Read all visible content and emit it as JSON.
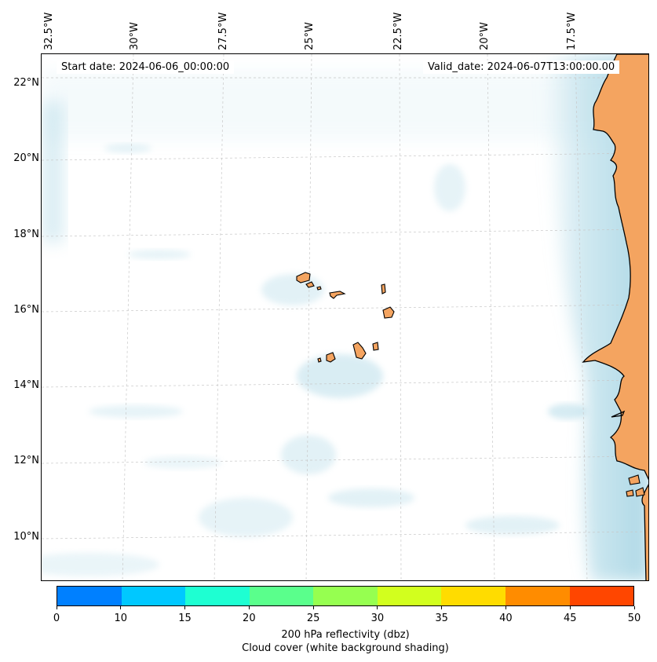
{
  "map": {
    "start_label": "Start date: 2024-06-06_00:00:00",
    "valid_label": "Valid_date: 2024-06-07T13:00:00.00",
    "lon_labels": [
      "32.5°W",
      "30°W",
      "27.5°W",
      "25°W",
      "22.5°W",
      "20°W",
      "17.5°W"
    ],
    "lat_labels": [
      "22°N",
      "20°N",
      "18°N",
      "16°N",
      "14°N",
      "12°N",
      "10°N"
    ],
    "land_color": "#f4a460",
    "cloud_color": "#add8e6",
    "gridline_color": "#c8c8c8",
    "coastline_color": "#000000"
  },
  "colorbar": {
    "ticks": [
      "0",
      "10",
      "15",
      "20",
      "25",
      "30",
      "35",
      "40",
      "45",
      "50"
    ],
    "colors": [
      "#0080ff",
      "#00c8ff",
      "#1effd2",
      "#5aff8c",
      "#96ff50",
      "#d2ff1e",
      "#ffdc00",
      "#ff8c00",
      "#ff4600"
    ],
    "label_line1": "200 hPa reflectivity (dbz)",
    "label_line2": "Cloud cover (white background shading)"
  }
}
